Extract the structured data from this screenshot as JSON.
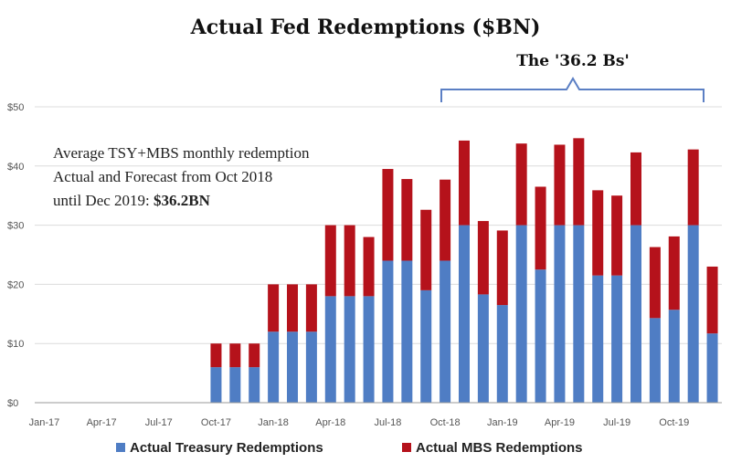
{
  "chart_data": {
    "type": "bar",
    "stacked": true,
    "title": "Actual Fed Redemptions ($BN)",
    "ylim": [
      0,
      50
    ],
    "yticks": [
      "$0",
      "$10",
      "$20",
      "$30",
      "$40",
      "$50"
    ],
    "ytick_values": [
      0,
      10,
      20,
      30,
      40,
      50
    ],
    "xtick_labels": [
      "Jan-17",
      "Apr-17",
      "Jul-17",
      "Oct-17",
      "Jan-18",
      "Apr-18",
      "Jul-18",
      "Oct-18",
      "Jan-19",
      "Apr-19",
      "Jul-19",
      "Oct-19"
    ],
    "categories": [
      "Jan-17",
      "Feb-17",
      "Mar-17",
      "Apr-17",
      "May-17",
      "Jun-17",
      "Jul-17",
      "Aug-17",
      "Sep-17",
      "Oct-17",
      "Nov-17",
      "Dec-17",
      "Jan-18",
      "Feb-18",
      "Mar-18",
      "Apr-18",
      "May-18",
      "Jun-18",
      "Jul-18",
      "Aug-18",
      "Sep-18",
      "Oct-18",
      "Nov-18",
      "Dec-18",
      "Jan-19",
      "Feb-19",
      "Mar-19",
      "Apr-19",
      "May-19",
      "Jun-19",
      "Jul-19",
      "Aug-19",
      "Sep-19",
      "Oct-19",
      "Nov-19",
      "Dec-19"
    ],
    "series": [
      {
        "name": "Actual Treasury Redemptions",
        "color": "#4f7dc4",
        "values": [
          0,
          0,
          0,
          0,
          0,
          0,
          0,
          0,
          0,
          6,
          6,
          6,
          12,
          12,
          12,
          18,
          18,
          18,
          24,
          24,
          19,
          24,
          30,
          18.3,
          16.5,
          30,
          22.5,
          30,
          30,
          21.5,
          21.5,
          30,
          14.3,
          15.7,
          30,
          11.7
        ]
      },
      {
        "name": "Actual MBS Redemptions",
        "color": "#b5121b",
        "values": [
          0,
          0,
          0,
          0,
          0,
          0,
          0,
          0,
          0,
          4,
          4,
          4,
          8,
          8,
          8,
          12,
          12,
          10,
          15.5,
          13.8,
          13.6,
          13.7,
          14.3,
          12.4,
          12.6,
          13.8,
          14,
          13.6,
          14.7,
          14.4,
          13.5,
          12.3,
          12,
          12.4,
          12.8,
          11.3
        ]
      }
    ],
    "legend": "bottom",
    "annotations": {
      "bracket_label": "The '36.2 Bs'",
      "note_lines": [
        "Average TSY+MBS monthly redemption",
        "Actual and Forecast from Oct 2018",
        "until Dec 2019: "
      ],
      "note_bold": "$36.2BN"
    }
  }
}
